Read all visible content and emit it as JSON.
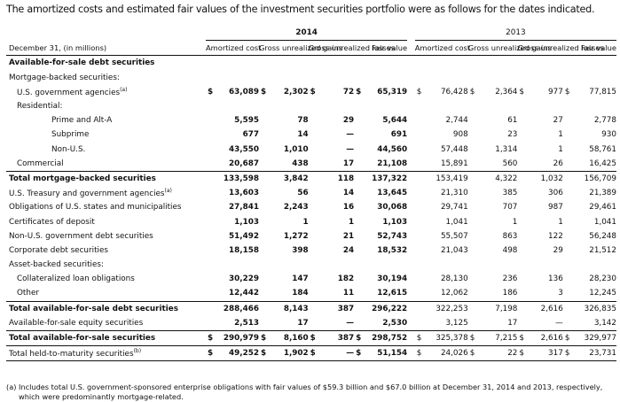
{
  "intro_text": "The amortized costs and estimated fair values of the investment securities portfolio were as follows for the dates indicated.",
  "years": [
    "2014",
    "2013"
  ],
  "header": {
    "row_label": "December 31, (in millions)",
    "cols": [
      "Amortized cost",
      "Gross unrealized gains",
      "Gross unrealized losses",
      "Fair value"
    ]
  },
  "rows": [
    {
      "label": "Available-for-sale debt securities",
      "bold": true,
      "indent": 1,
      "vals": [
        "",
        "",
        "",
        "",
        "",
        "",
        "",
        ""
      ],
      "dollars": false
    },
    {
      "label": "Mortgage-backed securities:",
      "indent": 1,
      "vals": [
        "",
        "",
        "",
        "",
        "",
        "",
        "",
        ""
      ]
    },
    {
      "label": "U.S. government agencies",
      "sup": "(a)",
      "indent": 2,
      "dollars": true,
      "vals": [
        "63,089",
        "2,302",
        "72",
        "65,319",
        "76,428",
        "2,364",
        "977",
        "77,815"
      ]
    },
    {
      "label": "Residential:",
      "indent": 2,
      "vals": [
        "",
        "",
        "",
        "",
        "",
        "",
        "",
        ""
      ]
    },
    {
      "label": "Prime and Alt-A",
      "indent": 3,
      "vals": [
        "5,595",
        "78",
        "29",
        "5,644",
        "2,744",
        "61",
        "27",
        "2,778"
      ]
    },
    {
      "label": "Subprime",
      "indent": 3,
      "vals": [
        "677",
        "14",
        "—",
        "691",
        "908",
        "23",
        "1",
        "930"
      ]
    },
    {
      "label": "Non-U.S.",
      "indent": 3,
      "vals": [
        "43,550",
        "1,010",
        "—",
        "44,560",
        "57,448",
        "1,314",
        "1",
        "58,761"
      ]
    },
    {
      "label": "Commercial",
      "indent": 2,
      "vals": [
        "20,687",
        "438",
        "17",
        "21,108",
        "15,891",
        "560",
        "26",
        "16,425"
      ]
    },
    {
      "label": "Total mortgage-backed securities",
      "bold": true,
      "indent": 1,
      "sep": true,
      "vals": [
        "133,598",
        "3,842",
        "118",
        "137,322",
        "153,419",
        "4,322",
        "1,032",
        "156,709"
      ]
    },
    {
      "label": "U.S. Treasury and government agencies",
      "sup": "(a)",
      "indent": 1,
      "vals": [
        "13,603",
        "56",
        "14",
        "13,645",
        "21,310",
        "385",
        "306",
        "21,389"
      ]
    },
    {
      "label": "Obligations of U.S. states and municipalities",
      "indent": 1,
      "vals": [
        "27,841",
        "2,243",
        "16",
        "30,068",
        "29,741",
        "707",
        "987",
        "29,461"
      ]
    },
    {
      "label": "Certificates of deposit",
      "indent": 1,
      "vals": [
        "1,103",
        "1",
        "1",
        "1,103",
        "1,041",
        "1",
        "1",
        "1,041"
      ]
    },
    {
      "label": "Non-U.S. government debt securities",
      "indent": 1,
      "vals": [
        "51,492",
        "1,272",
        "21",
        "52,743",
        "55,507",
        "863",
        "122",
        "56,248"
      ]
    },
    {
      "label": "Corporate debt securities",
      "indent": 1,
      "vals": [
        "18,158",
        "398",
        "24",
        "18,532",
        "21,043",
        "498",
        "29",
        "21,512"
      ]
    },
    {
      "label": "Asset-backed securities:",
      "indent": 1,
      "vals": [
        "",
        "",
        "",
        "",
        "",
        "",
        "",
        ""
      ]
    },
    {
      "label": "Collateralized loan obligations",
      "indent": 2,
      "vals": [
        "30,229",
        "147",
        "182",
        "30,194",
        "28,130",
        "236",
        "136",
        "28,230"
      ]
    },
    {
      "label": "Other",
      "indent": 2,
      "vals": [
        "12,442",
        "184",
        "11",
        "12,615",
        "12,062",
        "186",
        "3",
        "12,245"
      ]
    },
    {
      "label": "Total available-for-sale debt securities",
      "bold": true,
      "indent": 1,
      "sep": true,
      "vals": [
        "288,466",
        "8,143",
        "387",
        "296,222",
        "322,253",
        "7,198",
        "2,616",
        "326,835"
      ]
    },
    {
      "label": "Available-for-sale equity securities",
      "indent": 1,
      "vals": [
        "2,513",
        "17",
        "—",
        "2,530",
        "3,125",
        "17",
        "—",
        "3,142"
      ]
    },
    {
      "label": "Total available-for-sale securities",
      "bold": true,
      "indent": 1,
      "sep": true,
      "dollars": true,
      "vals": [
        "290,979",
        "8,160",
        "387",
        "298,752",
        "325,378",
        "7,215",
        "2,616",
        "329,977"
      ]
    },
    {
      "label": "Total held-to-maturity securities",
      "sup": "(b)",
      "indent": 1,
      "sep": true,
      "dollars": true,
      "bot": true,
      "vals": [
        "49,252",
        "1,902",
        "—",
        "51,154",
        "24,026",
        "22",
        "317",
        "23,731"
      ]
    }
  ],
  "footnote": "(a)  Includes total U.S. government-sponsored enterprise obligations with fair values of $59.3 billion and $67.0 billion at December 31, 2014 and 2013, respectively, which were predominantly mortgage-related.",
  "footnote_line1": "(a)  Includes total U.S. government-sponsored enterprise obligations with fair values of $59.3 billion and $67.0 billion at December 31, 2014 and 2013, respectively,",
  "footnote_line2": "which were predominantly mortgage-related."
}
